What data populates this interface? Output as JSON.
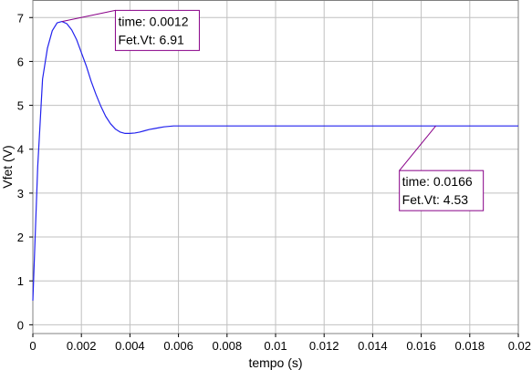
{
  "chart_data": {
    "type": "line",
    "title": "",
    "xlabel": "tempo (s)",
    "ylabel": "Vfet (V)",
    "xlim": [
      0,
      0.02
    ],
    "ylim": [
      -0.2,
      7.4
    ],
    "grid": true,
    "x_ticks": [
      0,
      0.002,
      0.004,
      0.006,
      0.008,
      0.01,
      0.012,
      0.014,
      0.016,
      0.018,
      0.02
    ],
    "x_tick_labels": [
      "0",
      "0.002",
      "0.004",
      "0.006",
      "0.008",
      "0.01",
      "0.012",
      "0.014",
      "0.016",
      "0.018",
      "0.02"
    ],
    "y_ticks": [
      0,
      1,
      2,
      3,
      4,
      5,
      6,
      7
    ],
    "y_tick_labels": [
      "0",
      "1",
      "2",
      "3",
      "4",
      "5",
      "6",
      "7"
    ],
    "colors": {
      "line": "#2222ee",
      "annotation": "#880088",
      "grid": "#c0c0c0"
    },
    "series": [
      {
        "x": [
          0,
          0.0002,
          0.0004,
          0.0006,
          0.0008,
          0.001,
          0.0012,
          0.0014,
          0.0016,
          0.0018,
          0.002,
          0.0022,
          0.0024,
          0.0026,
          0.0028,
          0.003,
          0.0032,
          0.0034,
          0.0036,
          0.0038,
          0.004,
          0.0042,
          0.0044,
          0.0046,
          0.0048,
          0.005,
          0.0052,
          0.0054,
          0.0056,
          0.0058,
          0.006,
          0.0065,
          0.007,
          0.008,
          0.01,
          0.012,
          0.014,
          0.016,
          0.0166,
          0.018,
          0.02
        ],
        "y": [
          0.55,
          3.6,
          5.6,
          6.3,
          6.7,
          6.88,
          6.91,
          6.86,
          6.72,
          6.5,
          6.2,
          5.9,
          5.55,
          5.25,
          4.98,
          4.75,
          4.58,
          4.46,
          4.39,
          4.36,
          4.36,
          4.37,
          4.39,
          4.42,
          4.45,
          4.47,
          4.49,
          4.51,
          4.52,
          4.53,
          4.53,
          4.53,
          4.53,
          4.53,
          4.53,
          4.53,
          4.53,
          4.53,
          4.53,
          4.53,
          4.53
        ]
      }
    ],
    "annotations": [
      {
        "x": 0.0012,
        "y": 6.91,
        "line1": "time: 0.0012",
        "line2": "Fet.Vt: 6.91",
        "box_x": 0.0034,
        "box_y": 6.25
      },
      {
        "x": 0.0166,
        "y": 4.53,
        "line1": "time: 0.0166",
        "line2": "Fet.Vt: 4.53",
        "box_x": 0.0151,
        "box_y": 2.6
      }
    ]
  }
}
